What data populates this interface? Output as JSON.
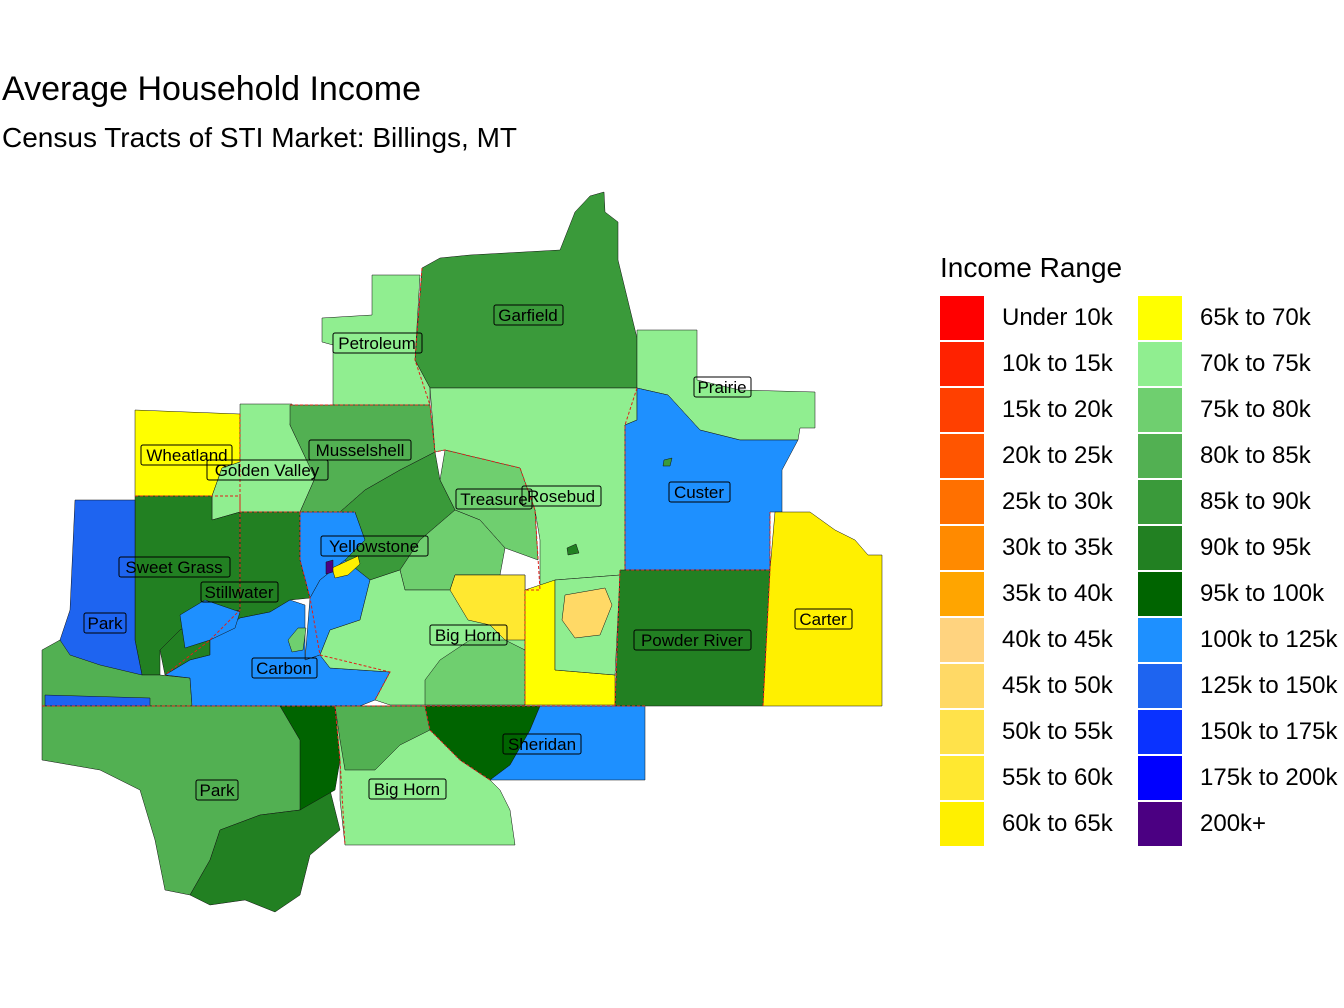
{
  "title": "Average Household Income",
  "subtitle": "Census Tracts of STI Market: Billings, MT",
  "legend": {
    "title": "Income Range",
    "items": [
      {
        "label": "Under 10k",
        "color": "#FF0000"
      },
      {
        "label": "10k to 15k",
        "color": "#FF2200"
      },
      {
        "label": "15k to 20k",
        "color": "#FF4000"
      },
      {
        "label": "20k to 25k",
        "color": "#FF5500"
      },
      {
        "label": "25k to 30k",
        "color": "#FF7000"
      },
      {
        "label": "30k to 35k",
        "color": "#FF8A00"
      },
      {
        "label": "35k to 40k",
        "color": "#FFA500"
      },
      {
        "label": "40k to 45k",
        "color": "#FFD37F"
      },
      {
        "label": "45k to 50k",
        "color": "#FFD966"
      },
      {
        "label": "50k to 55k",
        "color": "#FFE24A"
      },
      {
        "label": "55k to 60k",
        "color": "#FFE830"
      },
      {
        "label": "60k to 65k",
        "color": "#FFF000"
      },
      {
        "label": "65k to 70k",
        "color": "#FFFF00"
      },
      {
        "label": "70k to 75k",
        "color": "#90EE90"
      },
      {
        "label": "75k to 80k",
        "color": "#6FCF6F"
      },
      {
        "label": "80k to 85k",
        "color": "#52B052"
      },
      {
        "label": "85k to 90k",
        "color": "#3A9A3A"
      },
      {
        "label": "90k to 95k",
        "color": "#228022"
      },
      {
        "label": "95k to 100k",
        "color": "#006400"
      },
      {
        "label": "100k to 125k",
        "color": "#1E90FF"
      },
      {
        "label": "125k to 150k",
        "color": "#1E64F0"
      },
      {
        "label": "150k to 175k",
        "color": "#0A32FF"
      },
      {
        "label": "175k to 200k",
        "color": "#0000FF"
      },
      {
        "label": "200k+",
        "color": "#4B0082"
      }
    ]
  },
  "counties": {
    "garfield": "Garfield",
    "petroleum": "Petroleum",
    "prairie": "Prairie",
    "wheatland": "Wheatland",
    "golden_valley": "Golden Valley",
    "musselshell": "Musselshell",
    "treasure": "Treasure",
    "rosebud": "Rosebud",
    "custer": "Custer",
    "yellowstone": "Yellowstone",
    "sweet_grass": "Sweet Grass",
    "stillwater": "Stillwater",
    "park_mt": "Park",
    "big_horn_mt": "Big Horn",
    "carbon": "Carbon",
    "powder_river": "Powder River",
    "carter": "Carter",
    "sheridan": "Sheridan",
    "park_wy": "Park",
    "big_horn_wy": "Big Horn"
  },
  "colors": {
    "border_red": "#E0201A"
  }
}
